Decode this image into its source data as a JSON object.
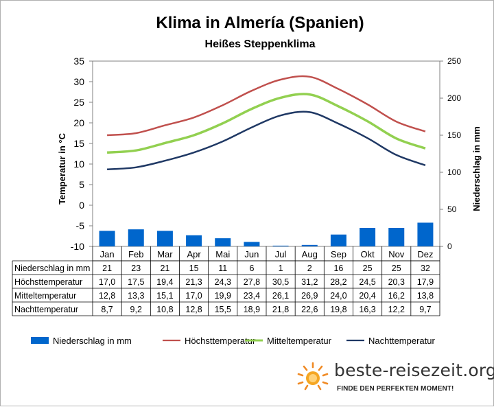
{
  "title": "Klima in Almería (Spanien)",
  "subtitle": "Heißes Steppenklima",
  "colors": {
    "precip": "#0066cc",
    "max": "#c0504d",
    "mean": "#92d050",
    "night": "#1f3864"
  },
  "chart_data": {
    "type": "bar",
    "categories": [
      "Jan",
      "Feb",
      "Mar",
      "Apr",
      "Mai",
      "Jun",
      "Jul",
      "Aug",
      "Sep",
      "Okt",
      "Nov",
      "Dez"
    ],
    "y_left": {
      "label": "Temperatur in °C",
      "range": [
        -10,
        35
      ],
      "ticks": [
        35,
        30,
        25,
        20,
        15,
        10,
        5,
        0,
        -5,
        -10
      ]
    },
    "y_right": {
      "label": "Niederschlag in mm",
      "range": [
        0,
        250
      ],
      "ticks": [
        250,
        200,
        150,
        100,
        50,
        0
      ]
    },
    "grid": false,
    "legend_position": "bottom",
    "series": [
      {
        "name": "Niederschlag in mm",
        "type": "bar",
        "axis": "right",
        "values": [
          21,
          23,
          21,
          15,
          11,
          6,
          1,
          2,
          16,
          25,
          25,
          32
        ],
        "labels": [
          "21",
          "23",
          "21",
          "15",
          "11",
          "6",
          "1",
          "2",
          "16",
          "25",
          "25",
          "32"
        ]
      },
      {
        "name": "Höchsttemperatur",
        "type": "line",
        "axis": "left",
        "values": [
          17.0,
          17.5,
          19.4,
          21.3,
          24.3,
          27.8,
          30.5,
          31.2,
          28.2,
          24.5,
          20.3,
          17.9
        ],
        "labels": [
          "17,0",
          "17,5",
          "19,4",
          "21,3",
          "24,3",
          "27,8",
          "30,5",
          "31,2",
          "28,2",
          "24,5",
          "20,3",
          "17,9"
        ]
      },
      {
        "name": "Mitteltemperatur",
        "type": "line",
        "axis": "left",
        "values": [
          12.8,
          13.3,
          15.1,
          17.0,
          19.9,
          23.4,
          26.1,
          26.9,
          24.0,
          20.4,
          16.2,
          13.8
        ],
        "labels": [
          "12,8",
          "13,3",
          "15,1",
          "17,0",
          "19,9",
          "23,4",
          "26,1",
          "26,9",
          "24,0",
          "20,4",
          "16,2",
          "13,8"
        ]
      },
      {
        "name": "Nachttemperatur",
        "type": "line",
        "axis": "left",
        "values": [
          8.7,
          9.2,
          10.8,
          12.8,
          15.5,
          18.9,
          21.8,
          22.6,
          19.8,
          16.3,
          12.2,
          9.7
        ],
        "labels": [
          "8,7",
          "9,2",
          "10,8",
          "12,8",
          "15,5",
          "18,9",
          "21,8",
          "22,6",
          "19,8",
          "16,3",
          "12,2",
          "9,7"
        ]
      }
    ]
  },
  "brand": {
    "name": "beste-reisezeit.org",
    "slogan": "FINDE DEN PERFEKTEN MOMENT!",
    "logo_icon": "sun-icon"
  }
}
